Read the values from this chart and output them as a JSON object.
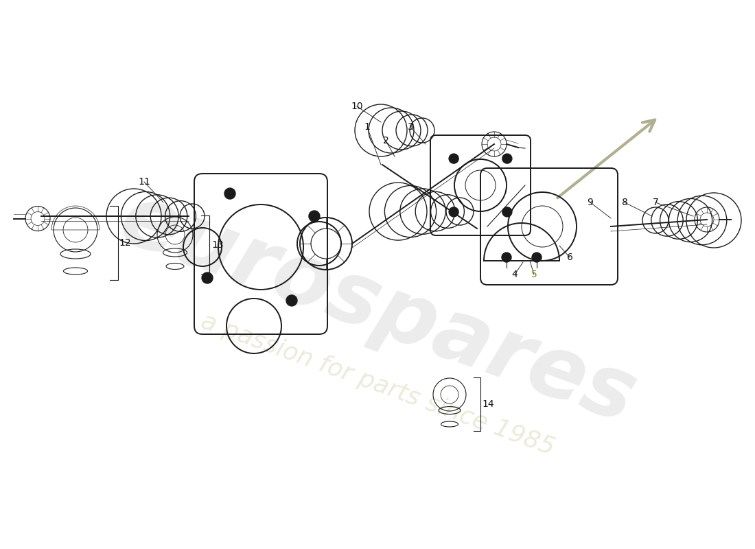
{
  "bg_color": "#ffffff",
  "line_color": "#1a1a1a",
  "watermark_text": "eurospares",
  "watermark_sub": "a passion for parts since 1985",
  "watermark_color": "#d0d0d0",
  "watermark_sub_color": "#d8d8b8",
  "label_fontsize": 10,
  "label_color": "#111111",
  "label_5_color": "#808000"
}
